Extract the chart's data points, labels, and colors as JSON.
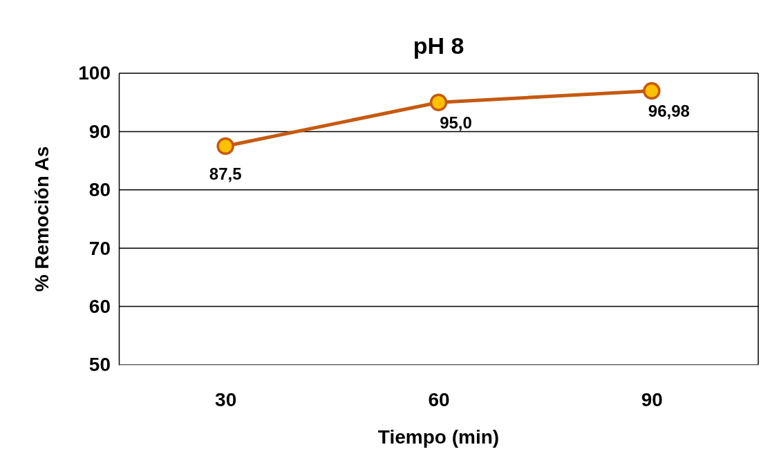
{
  "chart_data": {
    "type": "line",
    "title": "pH 8",
    "xlabel": "Tiempo (min)",
    "ylabel": "% Remoción As",
    "categories": [
      "30",
      "60",
      "90"
    ],
    "series": [
      {
        "color": "#c55a11",
        "values": [
          87.5,
          95.0,
          96.98
        ],
        "value_labels": [
          "87,5",
          "95,0",
          "96,98"
        ]
      }
    ],
    "ylim": [
      50,
      100
    ],
    "yticks": [
      50,
      60,
      70,
      80,
      90,
      100
    ],
    "grid": "y",
    "marker": "circle",
    "line_style": "solid"
  }
}
